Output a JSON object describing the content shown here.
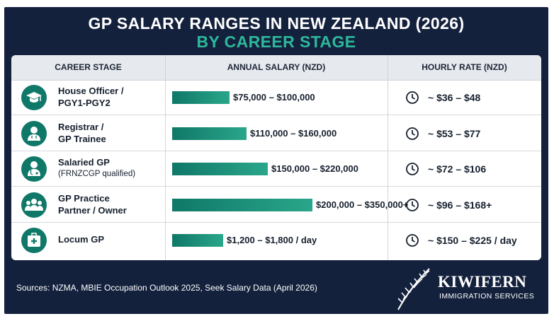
{
  "title_line1": "GP SALARY RANGES IN NEW ZEALAND (2026)",
  "title_line2": "BY CAREER STAGE",
  "headers": {
    "career_stage": "CAREER STAGE",
    "annual_salary": "ANNUAL SALARY (NZD)",
    "hourly_rate": "HOURLY RATE (NZD)"
  },
  "rows": [
    {
      "line1": "House Officer /",
      "line2": "PGY1-PGY2",
      "line2_small": false,
      "icon": "graduation-cap-icon",
      "salary": "$75,000 – $100,000",
      "rate": "~ $36 – $48"
    },
    {
      "line1": "Registrar /",
      "line2": "GP Trainee",
      "line2_small": false,
      "icon": "trainee-icon",
      "salary": "$110,000 – $160,000",
      "rate": "~ $53 – $77"
    },
    {
      "line1": "Salaried GP",
      "line2": "(FRNZCGP qualified)",
      "line2_small": true,
      "icon": "doctor-icon",
      "salary": "$150,000 – $220,000",
      "rate": "~ $72 – $106"
    },
    {
      "line1": "GP Practice",
      "line2": "Partner / Owner",
      "line2_small": false,
      "icon": "group-icon",
      "salary": "$200,000 – $350,000+",
      "rate": "~ $96 – $168+"
    },
    {
      "line1": "Locum GP",
      "line2": "",
      "line2_small": false,
      "icon": "medical-kit-icon",
      "salary": "$1,200 – $1,800 / day",
      "rate": "~ $150 – $225 / day"
    }
  ],
  "chart_data": {
    "type": "bar",
    "title": "GP SALARY RANGES IN NEW ZEALAND (2026)",
    "subtitle": "BY CAREER STAGE",
    "categories": [
      "House Officer / PGY1-PGY2",
      "Registrar / GP Trainee",
      "Salaried GP (FRNZCGP qualified)",
      "GP Practice Partner / Owner",
      "Locum GP"
    ],
    "series": [
      {
        "values": [
          100000,
          160000,
          220000,
          350000,
          1800
        ]
      }
    ],
    "value_labels": [
      "$75,000 – $100,000",
      "$110,000 – $160,000",
      "$150,000 – $220,000",
      "$200,000 – $350,000+",
      "$1,200 – $1,800 / day"
    ],
    "hourly_labels": [
      "~ $36 – $48",
      "~ $53 – $77",
      "~ $72 – $106",
      "~ $96 – $168+",
      "~ $150 – $225 / day"
    ],
    "bar_fraction": [
      0.27,
      0.35,
      0.45,
      0.66,
      0.24
    ],
    "orientation": "horizontal",
    "grid": false,
    "legend": "none"
  },
  "sources": "Sources: NZMA, MBIE Occupation Outlook 2025, Seek Salary Data (April 2026)",
  "brand": {
    "name": "KIWIFERN",
    "sub": "IMMIGRATION SERVICES"
  },
  "colors": {
    "navy": "#14213d",
    "teal": "#2db89a",
    "bar": "#0f7868"
  }
}
